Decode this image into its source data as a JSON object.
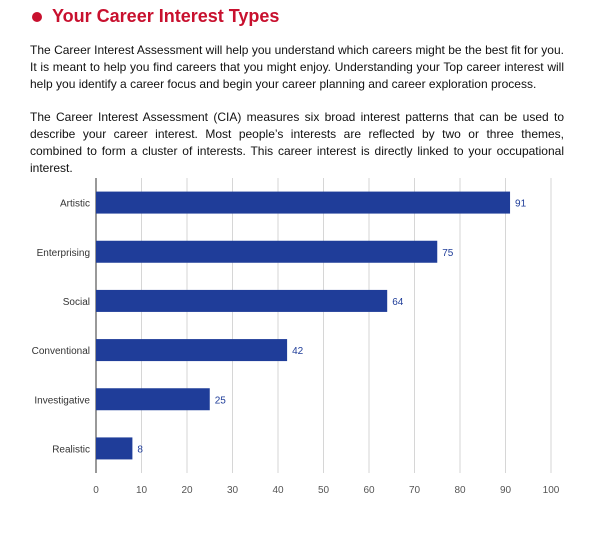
{
  "header": {
    "title": "Your Career Interest Types"
  },
  "content": {
    "paragraph1": "The Career Interest Assessment will help you understand which careers might be the best fit for you. It is meant to help you find careers that you might enjoy. Understanding your Top career interest will help you identify a career focus and begin your career planning and career exploration process.",
    "paragraph2": "The Career Interest Assessment (CIA) measures six broad interest patterns that can be used to describe your career interest. Most people’s interests are reflected by two or three themes, combined to form a cluster of interests. This career interest is directly linked to your occupational interest."
  },
  "colors": {
    "title": "#c8102e",
    "bar": "#1f3d99"
  },
  "chart_data": {
    "type": "bar",
    "orientation": "horizontal",
    "categories": [
      "Artistic",
      "Enterprising",
      "Social",
      "Conventional",
      "Investigative",
      "Realistic"
    ],
    "values": [
      91,
      75,
      64,
      42,
      25,
      8
    ],
    "xlim": [
      0,
      100
    ],
    "xticks": [
      0,
      10,
      20,
      30,
      40,
      50,
      60,
      70,
      80,
      90,
      100
    ],
    "grid": true,
    "legend": "none",
    "data_labels": true
  }
}
